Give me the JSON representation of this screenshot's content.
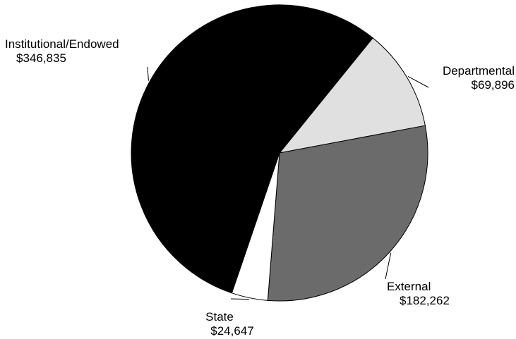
{
  "chart_data": {
    "type": "pie",
    "title": "",
    "slices": [
      {
        "label": "Departmental",
        "value": 69896,
        "value_text": "$69,896",
        "color": "#e0e0e0"
      },
      {
        "label": "External",
        "value": 182262,
        "value_text": "$182,262",
        "color": "#6b6b6b"
      },
      {
        "label": "State",
        "value": 24647,
        "value_text": "$24,647",
        "color": "#ffffff"
      },
      {
        "label": "Institutional/Endowed",
        "value": 346835,
        "value_text": "$346,835",
        "color": "#000000"
      }
    ],
    "legend": "none",
    "labels": "outside, with leader lines",
    "outline_color": "#000000"
  }
}
